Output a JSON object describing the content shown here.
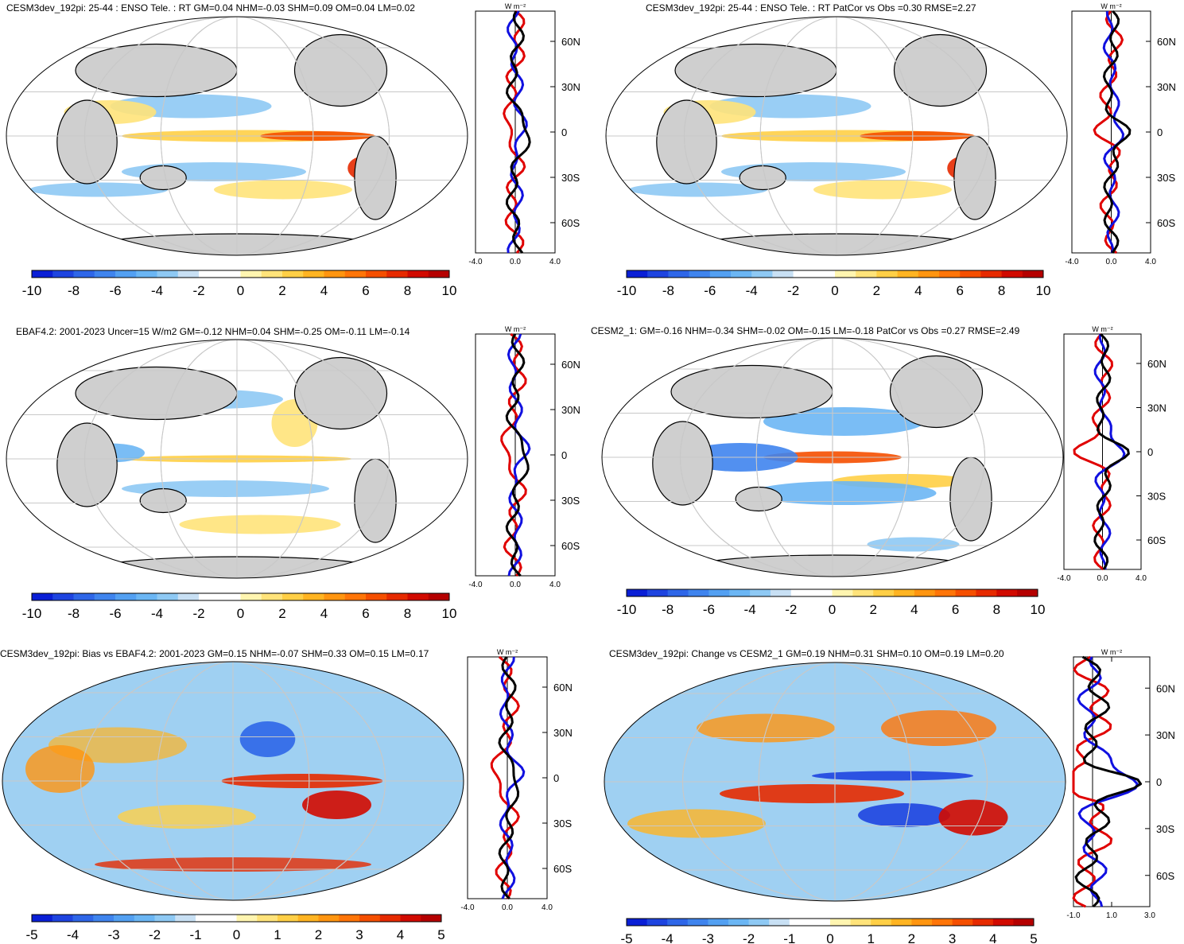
{
  "profile_unit": "W m⁻²",
  "lat_labels": [
    "60N",
    "30N",
    "0",
    "30S",
    "60S"
  ],
  "lat_values": [
    60,
    30,
    0,
    -30,
    -60
  ],
  "palette_wide": [
    "#0a1fd6",
    "#1e44e0",
    "#2e66e8",
    "#3f84ee",
    "#53a0f2",
    "#6bb6f4",
    "#8ec9f4",
    "#c8e0f4",
    "#ffffff",
    "#ffffff",
    "#fff5b0",
    "#ffe37a",
    "#ffcf46",
    "#ffb422",
    "#ff9510",
    "#ff7508",
    "#f54f00",
    "#e62a00",
    "#d10a00",
    "#b50000"
  ],
  "palette_bias": [
    "#0a1fd6",
    "#1e44e0",
    "#2e66e8",
    "#3f84ee",
    "#53a0f2",
    "#6bb6f4",
    "#8ec9f4",
    "#c8e0f4",
    "#ffffff",
    "#ffffff",
    "#fff5b0",
    "#ffe37a",
    "#ffcf46",
    "#ffb422",
    "#ff9510",
    "#ff7508",
    "#f54f00",
    "#e62a00",
    "#d10a00",
    "#b50000"
  ],
  "chart_data": [
    {
      "type": "heatmap",
      "title": "CESM3dev_192pi: 25-44 : ENSO Tele. : RT GM=0.04 NHM=-0.03 SHM=0.09 OM=0.04 LM=0.02",
      "colorbar_labels": [
        "-10",
        "-8",
        "-6",
        "-4",
        "-2",
        "0",
        "2",
        "4",
        "6",
        "8",
        "10"
      ],
      "profile": {
        "xlim": [
          -4,
          4
        ],
        "xticks": [
          "-4.0",
          "0.0",
          "4.0"
        ],
        "ylim": [
          -80,
          80
        ]
      }
    },
    {
      "type": "heatmap",
      "title": "CESM3dev_192pi: 25-44 : ENSO Tele. : RT PatCor vs Obs =0.30 RMSE=2.27",
      "colorbar_labels": [
        "-10",
        "-8",
        "-6",
        "-4",
        "-2",
        "0",
        "2",
        "4",
        "6",
        "8",
        "10"
      ],
      "profile": {
        "xlim": [
          -4,
          4
        ],
        "xticks": [
          "-4.0",
          "0.0",
          "4.0"
        ],
        "ylim": [
          -80,
          80
        ]
      }
    },
    {
      "type": "heatmap",
      "title": "EBAF4.2: 2001-2023 Uncer=15 W/m2 GM=-0.12 NHM=0.04 SHM=-0.25 OM=-0.11 LM=-0.14",
      "colorbar_labels": [
        "-10",
        "-8",
        "-6",
        "-4",
        "-2",
        "0",
        "2",
        "4",
        "6",
        "8",
        "10"
      ],
      "profile": {
        "xlim": [
          -4,
          4
        ],
        "xticks": [
          "-4.0",
          "0.0",
          "4.0"
        ],
        "ylim": [
          -80,
          80
        ]
      }
    },
    {
      "type": "heatmap",
      "title": "CESM2_1: GM=-0.16 NHM=-0.34 SHM=-0.02 OM=-0.15 LM=-0.18 PatCor vs Obs =0.27 RMSE=2.49",
      "colorbar_labels": [
        "-10",
        "-8",
        "-6",
        "-4",
        "-2",
        "0",
        "2",
        "4",
        "6",
        "8",
        "10"
      ],
      "profile": {
        "xlim": [
          -4,
          4
        ],
        "xticks": [
          "-4.0",
          "0.0",
          "4.0"
        ],
        "ylim": [
          -80,
          80
        ]
      }
    },
    {
      "type": "heatmap",
      "title": "CESM3dev_192pi: Bias vs EBAF4.2: 2001-2023 GM=0.15 NHM=-0.07 SHM=0.33 OM=0.15 LM=0.17",
      "colorbar_labels": [
        "-5",
        "-4",
        "-3",
        "-2",
        "-1",
        "0",
        "1",
        "2",
        "3",
        "4",
        "5"
      ],
      "profile": {
        "xlim": [
          -4,
          4
        ],
        "xticks": [
          "-4.0",
          "0.0",
          "4.0"
        ],
        "ylim": [
          -80,
          80
        ]
      }
    },
    {
      "type": "heatmap",
      "title": "CESM3dev_192pi: Change vs CESM2_1 GM=0.19 NHM=0.31 SHM=0.10 OM=0.19 LM=0.20",
      "colorbar_labels": [
        "-5",
        "-4",
        "-3",
        "-2",
        "-1",
        "0",
        "1",
        "2",
        "3",
        "4",
        "5"
      ],
      "profile": {
        "xlim": [
          -1,
          3
        ],
        "xticks": [
          "-1.0",
          "1.0",
          "3.0"
        ],
        "ylim": [
          -80,
          80
        ]
      }
    }
  ]
}
